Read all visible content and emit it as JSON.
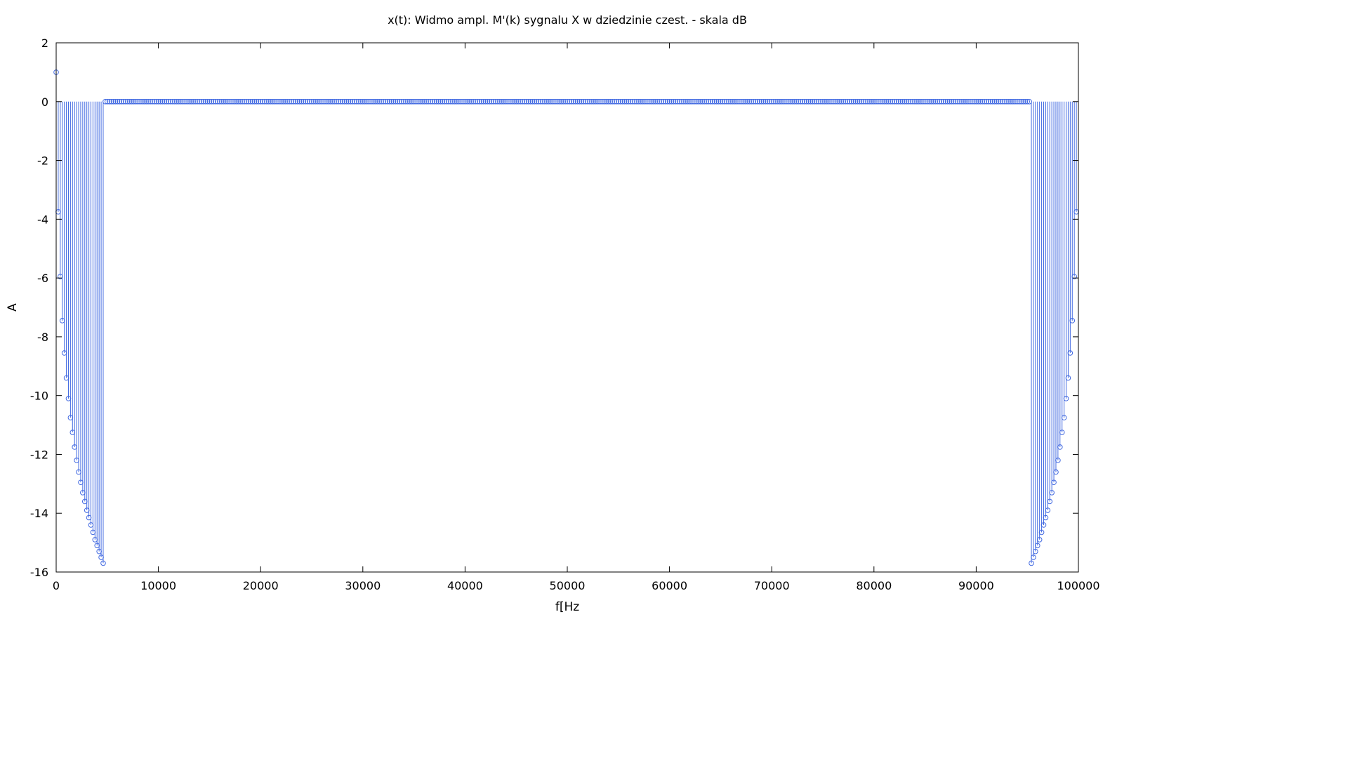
{
  "chart_data": {
    "type": "stem",
    "title": "x(t): Widmo ampl. M'(k) sygnalu X w dziedzinie czest. - skala dB",
    "xlabel": "f[Hz",
    "ylabel": "A",
    "xlim": [
      0,
      100000
    ],
    "ylim": [
      -16,
      2
    ],
    "x_ticks": [
      "0",
      "10000",
      "20000",
      "30000",
      "40000",
      "50000",
      "60000",
      "70000",
      "80000",
      "90000",
      "100000"
    ],
    "y_ticks": [
      "2",
      "0",
      "-2",
      "-4",
      "-6",
      "-8",
      "-10",
      "-12",
      "-14",
      "-16"
    ],
    "grid": false,
    "marker": "circle",
    "color": "#4169e1",
    "bin_spacing_hz": 200,
    "baseline_value": 0,
    "series": [
      {
        "x": [
          0,
          200,
          400,
          600,
          800,
          1000,
          1200,
          1400,
          1600,
          1800,
          2000,
          2200,
          2400,
          2600,
          2800,
          3000,
          3200,
          3400,
          3600,
          3800,
          4000,
          4200,
          4400,
          4600,
          95400,
          95600,
          95800,
          96000,
          96200,
          96400,
          96600,
          96800,
          97000,
          97200,
          97400,
          97600,
          97800,
          98000,
          98200,
          98400,
          98600,
          98800,
          99000,
          99200,
          99400,
          99600,
          99800
        ],
        "y": [
          1.0,
          -3.75,
          -5.95,
          -7.45,
          -8.55,
          -9.4,
          -10.1,
          -10.75,
          -11.25,
          -11.75,
          -12.2,
          -12.6,
          -12.95,
          -13.3,
          -13.6,
          -13.9,
          -14.15,
          -14.4,
          -14.65,
          -14.9,
          -15.1,
          -15.3,
          -15.5,
          -15.7,
          -15.7,
          -15.5,
          -15.3,
          -15.1,
          -14.9,
          -14.65,
          -14.4,
          -14.15,
          -13.9,
          -13.6,
          -13.3,
          -12.95,
          -12.6,
          -12.2,
          -11.75,
          -11.25,
          -10.75,
          -10.1,
          -9.4,
          -8.55,
          -7.45,
          -5.95,
          -3.75
        ]
      }
    ]
  }
}
